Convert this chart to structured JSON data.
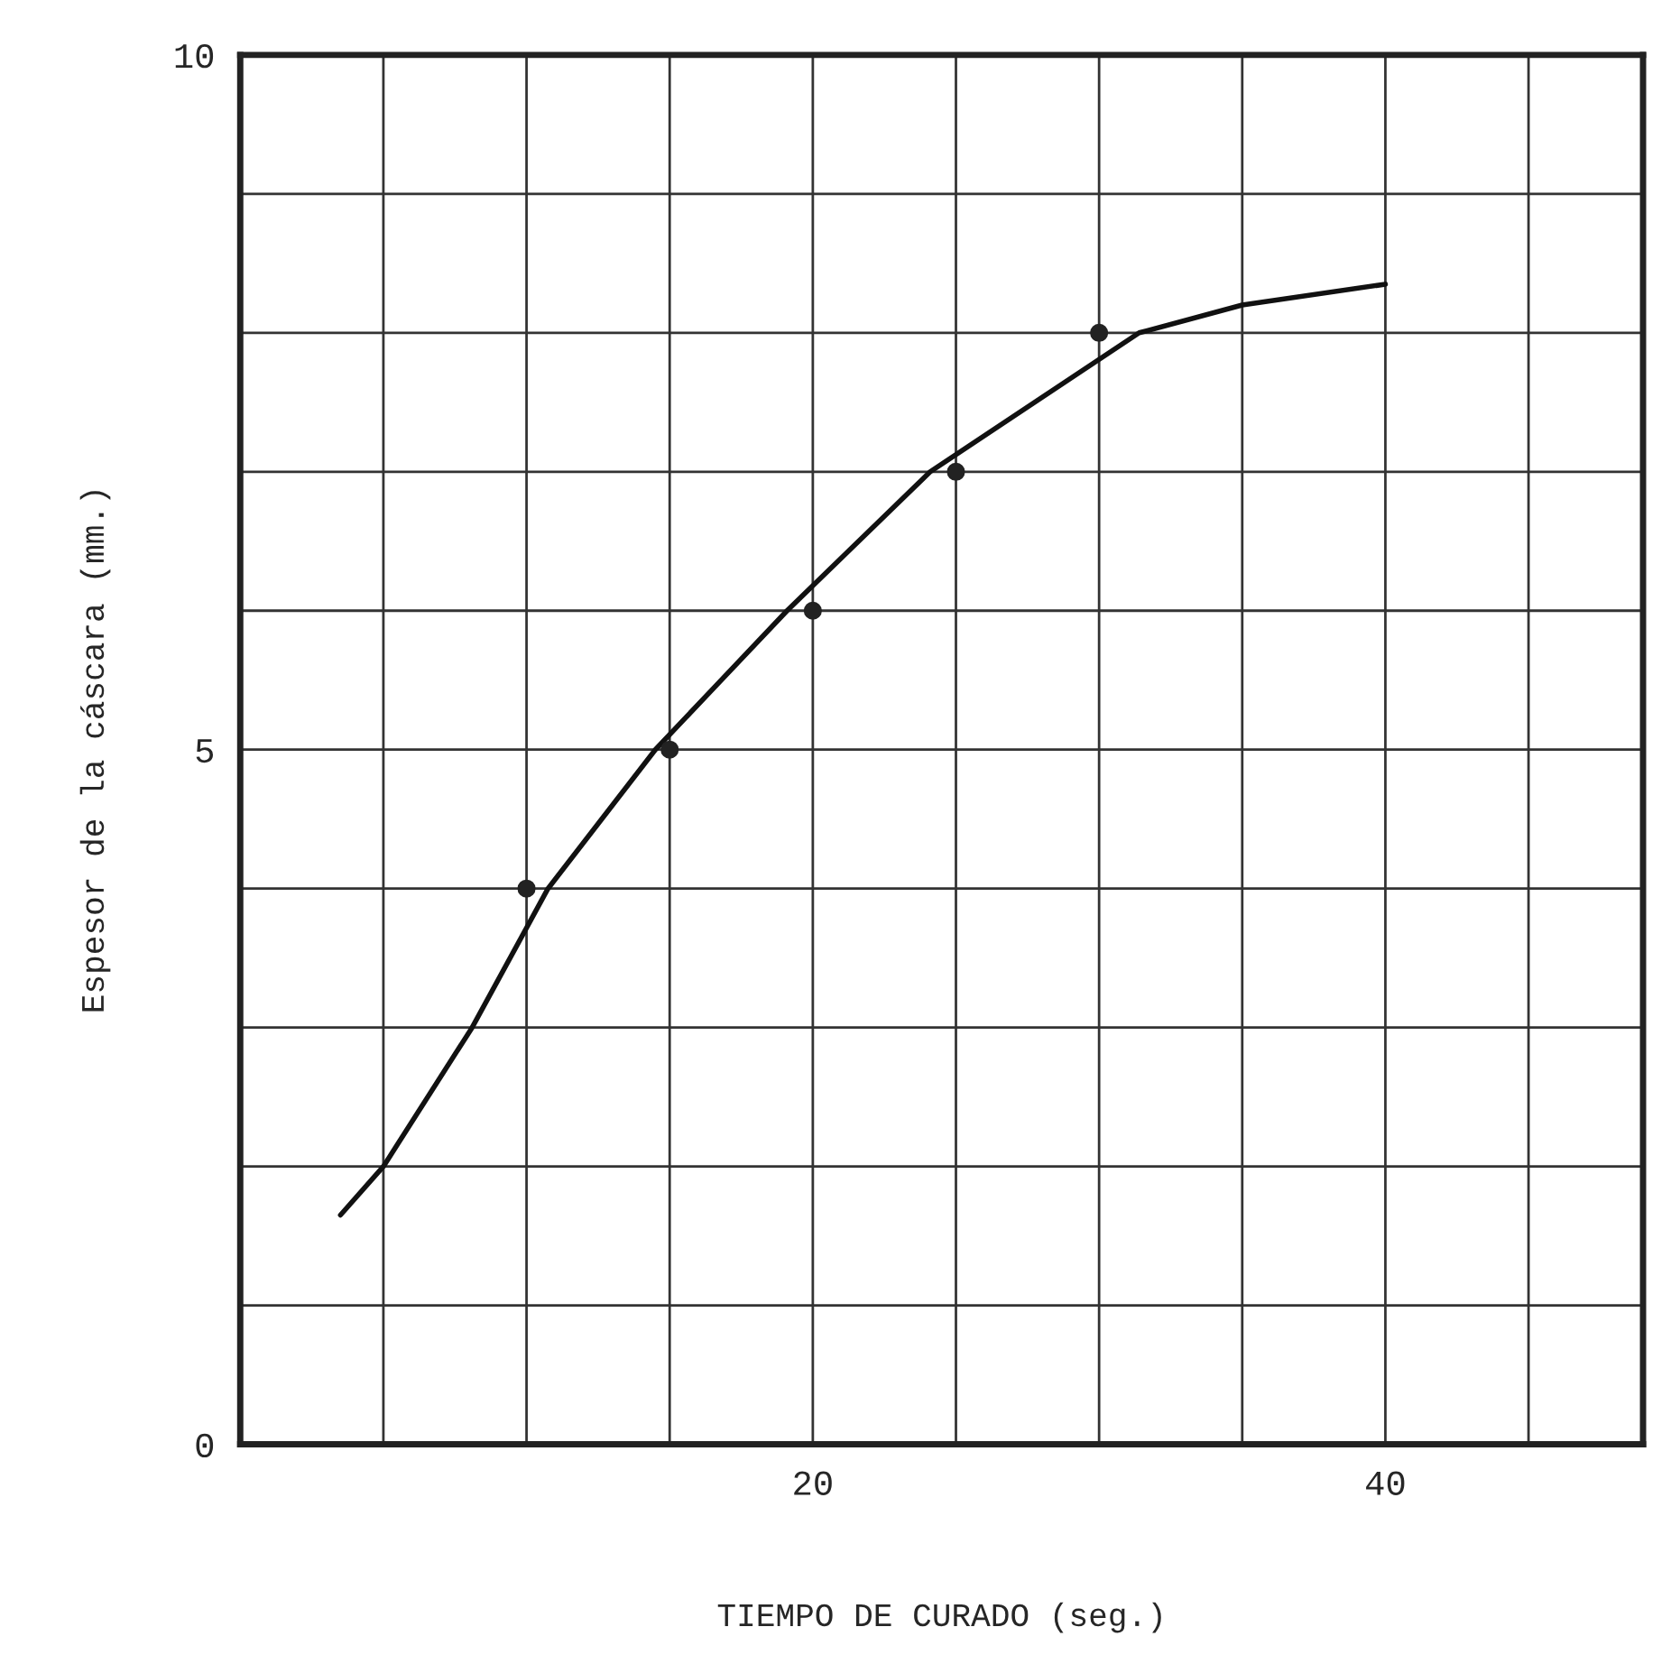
{
  "chart_data": {
    "type": "line",
    "xlabel": "TIEMPO DE CURADO (seg.)",
    "ylabel": "Espesor de la cáscara (mm.)",
    "xlim": [
      0,
      49
    ],
    "ylim": [
      0,
      10
    ],
    "xticks": [
      {
        "value": 5,
        "label": null
      },
      {
        "value": 10,
        "label": null
      },
      {
        "value": 15,
        "label": null
      },
      20,
      {
        "value": 25,
        "label": null
      },
      {
        "value": 30,
        "label": null
      },
      {
        "value": 35,
        "label": null
      },
      40,
      {
        "value": 45,
        "label": null
      }
    ],
    "yticks": [
      0,
      {
        "value": 1,
        "label": null
      },
      {
        "value": 2,
        "label": null
      },
      {
        "value": 3,
        "label": null
      },
      {
        "value": 4,
        "label": null
      },
      5,
      {
        "value": 6,
        "label": null
      },
      {
        "value": 7,
        "label": null
      },
      {
        "value": 8,
        "label": null
      },
      {
        "value": 9,
        "label": null
      },
      10
    ],
    "grid": true,
    "series": [
      {
        "type": "scatter",
        "color": "#222222",
        "marker": "circle",
        "x": [
          10,
          15,
          20,
          25,
          30
        ],
        "values": [
          4,
          5,
          6,
          7,
          8
        ]
      },
      {
        "color": "#111111",
        "marker": "none",
        "line_style": "solid",
        "x": [
          3.5,
          5,
          8.1,
          10.75,
          14.5,
          19.1,
          24.1,
          31.4,
          35,
          40
        ],
        "values": [
          1.65,
          2,
          3,
          4,
          5,
          6,
          7,
          8,
          8.2,
          8.35
        ]
      }
    ]
  }
}
